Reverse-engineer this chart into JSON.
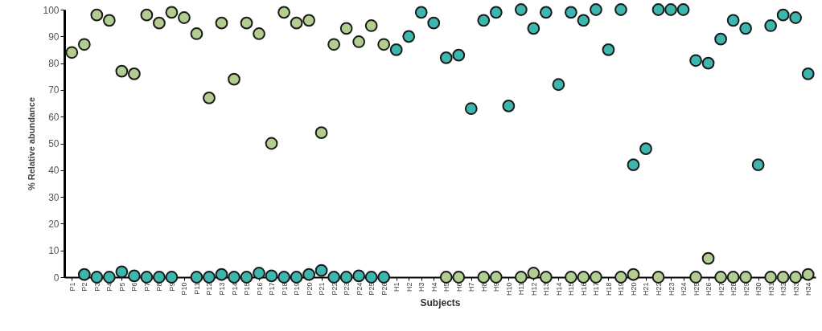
{
  "chart_data": {
    "type": "scatter",
    "xlabel": "Subjects",
    "ylabel": "% Relative abundance",
    "categories": [
      "P1",
      "P2",
      "P3",
      "P4",
      "P5",
      "P6",
      "P7",
      "P8",
      "P9",
      "P10",
      "P11",
      "P12",
      "P13",
      "P14",
      "P15",
      "P16",
      "P17",
      "P18",
      "P19",
      "P20",
      "P21",
      "P22",
      "P23",
      "P24",
      "P25",
      "P26",
      "H1",
      "H2",
      "H3",
      "H4",
      "H5",
      "H6",
      "H7",
      "H8",
      "H9",
      "H10",
      "H11",
      "H12",
      "H13",
      "H14",
      "H15",
      "H16",
      "H17",
      "H18",
      "H19",
      "H20",
      "H21",
      "H22",
      "H23",
      "H24",
      "H25",
      "H26",
      "H27",
      "H28",
      "H29",
      "H30",
      "H31",
      "H32",
      "H33",
      "H34"
    ],
    "series": [
      {
        "color": "#b3cc8f",
        "values": [
          84,
          87,
          98,
          96,
          77,
          76,
          98,
          95,
          99,
          97,
          91,
          67,
          95,
          74,
          95,
          91,
          50,
          99,
          95,
          96,
          54,
          87,
          93,
          88,
          94,
          87,
          null,
          null,
          null,
          null,
          0,
          0,
          null,
          0,
          0,
          null,
          0,
          1.5,
          0,
          null,
          0,
          0,
          0,
          null,
          0,
          1,
          null,
          0,
          null,
          null,
          0,
          7,
          0,
          0,
          0,
          null,
          0,
          0,
          0,
          1
        ]
      },
      {
        "color": "#3cb6ae",
        "values": [
          null,
          1,
          0,
          0,
          2,
          0.5,
          0,
          0,
          0,
          null,
          0,
          0,
          1,
          0,
          0,
          1.5,
          0.5,
          0,
          0,
          1,
          2.5,
          0,
          0,
          0.5,
          0,
          0,
          85,
          90,
          99,
          95,
          82,
          83,
          63,
          96,
          99,
          64,
          100,
          93,
          99,
          72,
          99,
          96,
          100,
          85,
          100,
          42,
          48,
          100,
          100,
          100,
          81,
          80,
          89,
          96,
          93,
          42,
          94,
          98,
          97,
          76
        ]
      }
    ],
    "ylim": [
      0,
      100
    ],
    "yticks": [
      0,
      10,
      20,
      30,
      40,
      50,
      60,
      70,
      80,
      90,
      100
    ],
    "grid": false,
    "marker": "circle"
  }
}
